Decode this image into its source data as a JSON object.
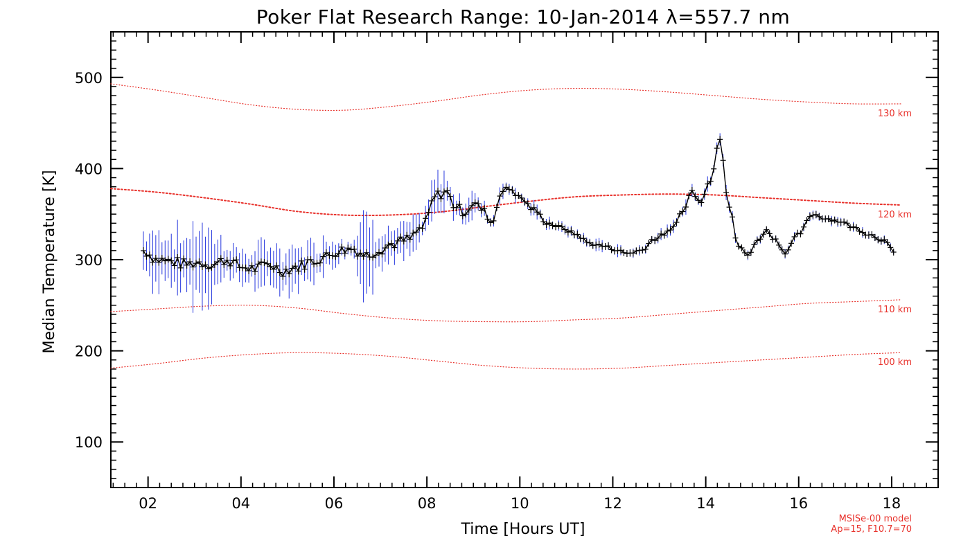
{
  "chart_data": {
    "type": "line",
    "title": "Poker Flat Research Range: 10-Jan-2014 λ=557.7 nm",
    "xlabel": "Time [Hours UT]",
    "ylabel": "Median Temperature [K]",
    "xlim": [
      1.2,
      19.0
    ],
    "ylim": [
      50,
      550
    ],
    "x_ticks": [
      2,
      4,
      6,
      8,
      10,
      12,
      14,
      16,
      18
    ],
    "x_tick_labels": [
      "02",
      "04",
      "06",
      "08",
      "10",
      "12",
      "14",
      "16",
      "18"
    ],
    "y_ticks": [
      100,
      200,
      300,
      400,
      500
    ],
    "y_tick_labels": [
      "100",
      "200",
      "300",
      "400",
      "500"
    ],
    "grid": false,
    "colors": {
      "data_line": "#000000",
      "error_bars": "#2233dd",
      "model_lines": "#e8312b",
      "axes": "#000000"
    },
    "measured": {
      "x": [
        1.9,
        2.2,
        2.5,
        2.8,
        3.1,
        3.4,
        3.7,
        4.0,
        4.3,
        4.6,
        4.9,
        5.2,
        5.5,
        5.8,
        6.1,
        6.4,
        6.7,
        7.0,
        7.3,
        7.6,
        7.9,
        8.2,
        8.4,
        8.6,
        8.8,
        9.0,
        9.2,
        9.4,
        9.6,
        9.8,
        10.0,
        10.3,
        10.6,
        10.9,
        11.2,
        11.5,
        11.8,
        12.0,
        12.3,
        12.6,
        12.9,
        13.2,
        13.5,
        13.7,
        13.9,
        14.1,
        14.3,
        14.5,
        14.7,
        14.9,
        15.1,
        15.3,
        15.5,
        15.7,
        16.0,
        16.3,
        16.6,
        16.9,
        17.2,
        17.5,
        17.8,
        18.1
      ],
      "y": [
        310,
        300,
        298,
        295,
        297,
        295,
        300,
        292,
        290,
        295,
        288,
        292,
        298,
        303,
        310,
        312,
        305,
        312,
        318,
        322,
        335,
        370,
        375,
        360,
        352,
        362,
        355,
        340,
        375,
        378,
        368,
        355,
        340,
        335,
        328,
        318,
        315,
        312,
        307,
        310,
        323,
        330,
        352,
        375,
        365,
        388,
        435,
        358,
        315,
        305,
        320,
        332,
        322,
        308,
        328,
        350,
        345,
        342,
        335,
        328,
        322,
        306
      ],
      "err": [
        20,
        28,
        30,
        28,
        40,
        30,
        18,
        16,
        18,
        24,
        18,
        20,
        18,
        18,
        14,
        10,
        40,
        18,
        14,
        16,
        12,
        20,
        16,
        14,
        10,
        12,
        8,
        6,
        8,
        8,
        6,
        6,
        5,
        5,
        5,
        5,
        5,
        5,
        5,
        5,
        5,
        5,
        6,
        6,
        6,
        6,
        8,
        6,
        4,
        4,
        4,
        4,
        4,
        4,
        4,
        4,
        4,
        4,
        4,
        4,
        4,
        4
      ]
    },
    "model": {
      "name": "MSISe-00 model",
      "params": "Ap=15, F10.7=70",
      "x": [
        1.2,
        2.2,
        3.2,
        4.2,
        5.2,
        6.2,
        7.2,
        8.2,
        9.2,
        10.2,
        11.2,
        12.2,
        13.2,
        14.2,
        15.2,
        16.2,
        17.2,
        18.2
      ],
      "series": [
        {
          "name": "130 km",
          "values": [
            493,
            486,
            478,
            470,
            465,
            464,
            468,
            474,
            481,
            486,
            488,
            487,
            484,
            480,
            476,
            473,
            471,
            471
          ]
        },
        {
          "name": "120 km",
          "values": [
            378,
            374,
            368,
            361,
            353,
            349,
            349,
            352,
            358,
            364,
            369,
            371,
            372,
            371,
            368,
            365,
            362,
            360
          ]
        },
        {
          "name": "110 km",
          "values": [
            243,
            246,
            249,
            250,
            247,
            241,
            236,
            233,
            232,
            232,
            234,
            236,
            240,
            244,
            248,
            252,
            254,
            256
          ]
        },
        {
          "name": "100 km",
          "values": [
            181,
            186,
            192,
            196,
            198,
            197,
            194,
            189,
            184,
            181,
            180,
            181,
            184,
            187,
            190,
            193,
            196,
            198
          ]
        }
      ]
    },
    "annotations": {
      "model_note_line1": "MSISe-00 model",
      "model_note_line2": "Ap=15, F10.7=70"
    }
  }
}
